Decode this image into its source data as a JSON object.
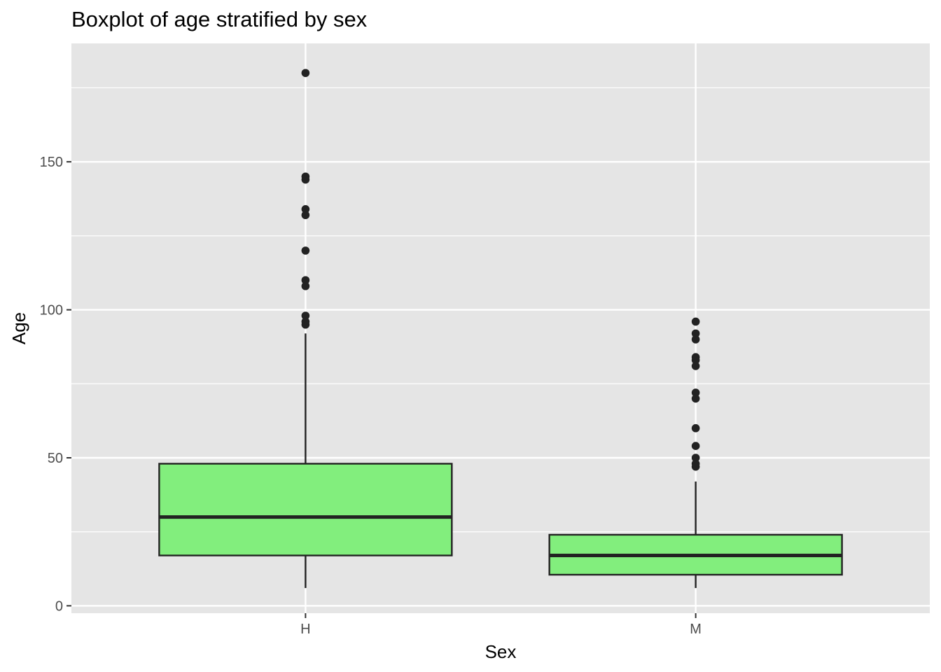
{
  "chart_data": {
    "type": "boxplot",
    "title": "Boxplot of age stratified by sex",
    "xlabel": "Sex",
    "ylabel": "Age",
    "categories": [
      "H",
      "M"
    ],
    "ylim": [
      -2.5,
      190
    ],
    "yticks": [
      0,
      50,
      100,
      150
    ],
    "grid": true,
    "legend": "none",
    "colors": {
      "panel_background": "#e5e5e5",
      "grid_line": "#ffffff",
      "box_fill": "#82ee7d",
      "box_outline": "#222222",
      "outlier": "#222222",
      "tick_label": "#4d4d4d",
      "tick_mark": "#333333"
    },
    "boxes": [
      {
        "category": "H",
        "whisker_low": 6,
        "q1": 17,
        "median": 30,
        "q3": 48,
        "whisker_high": 92,
        "outliers": [
          95,
          96,
          98,
          108,
          110,
          120,
          132,
          134,
          144,
          145,
          180
        ]
      },
      {
        "category": "M",
        "whisker_low": 6,
        "q1": 10.5,
        "median": 17,
        "q3": 24,
        "whisker_high": 42,
        "outliers": [
          47,
          48,
          50,
          54,
          60,
          70,
          72,
          81,
          83,
          84,
          90,
          92,
          96
        ]
      }
    ]
  }
}
